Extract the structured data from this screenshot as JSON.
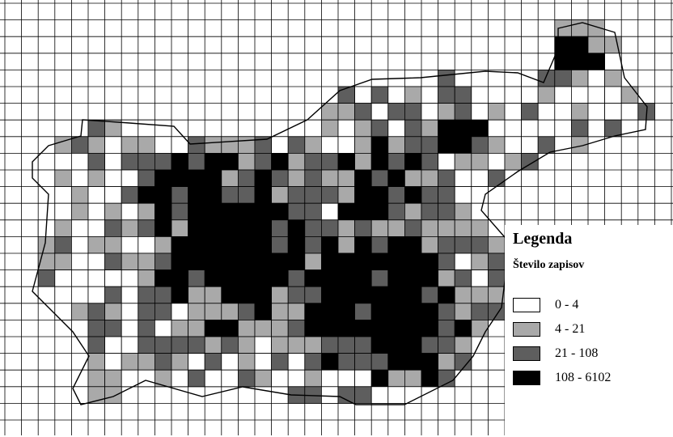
{
  "colors": {
    "c0": "#ffffff",
    "c1": "#a9a9a9",
    "c2": "#5e5e5e",
    "c3": "#000000",
    "grid": "#000000"
  },
  "legend": {
    "title": "Legenda",
    "subtitle": "Število zapisov",
    "items": [
      {
        "label": "0 - 4",
        "color": "#ffffff"
      },
      {
        "label": "4 - 21",
        "color": "#a9a9a9"
      },
      {
        "label": "21 - 108",
        "color": "#5e5e5e"
      },
      {
        "label": "108 - 6102",
        "color": "#000000"
      }
    ]
  }
}
